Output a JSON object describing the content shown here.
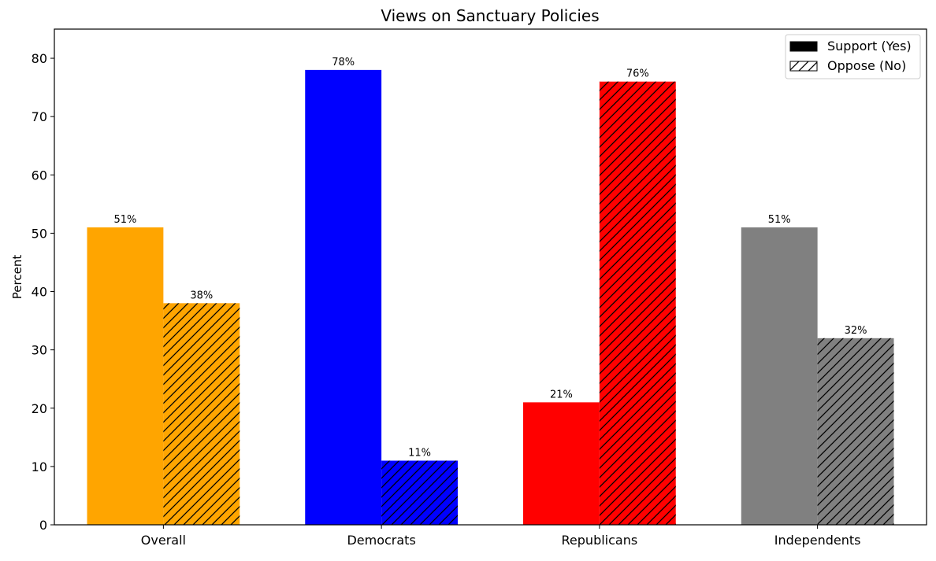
{
  "chart_data": {
    "type": "bar",
    "title": "Views on Sanctuary Policies",
    "xlabel": "",
    "ylabel": "Percent",
    "ylim": [
      0,
      85
    ],
    "yticks": [
      0,
      10,
      20,
      30,
      40,
      50,
      60,
      70,
      80
    ],
    "categories": [
      "Overall",
      "Democrats",
      "Republicans",
      "Independents"
    ],
    "category_colors": [
      "#FFA500",
      "#0000FF",
      "#FF0000",
      "#808080"
    ],
    "series": [
      {
        "name": "Support (Yes)",
        "values": [
          51,
          78,
          21,
          51
        ],
        "labels": [
          "51%",
          "78%",
          "21%",
          "51%"
        ],
        "pattern": "solid"
      },
      {
        "name": "Oppose (No)",
        "values": [
          38,
          11,
          76,
          32
        ],
        "labels": [
          "38%",
          "11%",
          "76%",
          "32%"
        ],
        "pattern": "hatch"
      }
    ],
    "grid": false,
    "legend_position": "top-right"
  }
}
